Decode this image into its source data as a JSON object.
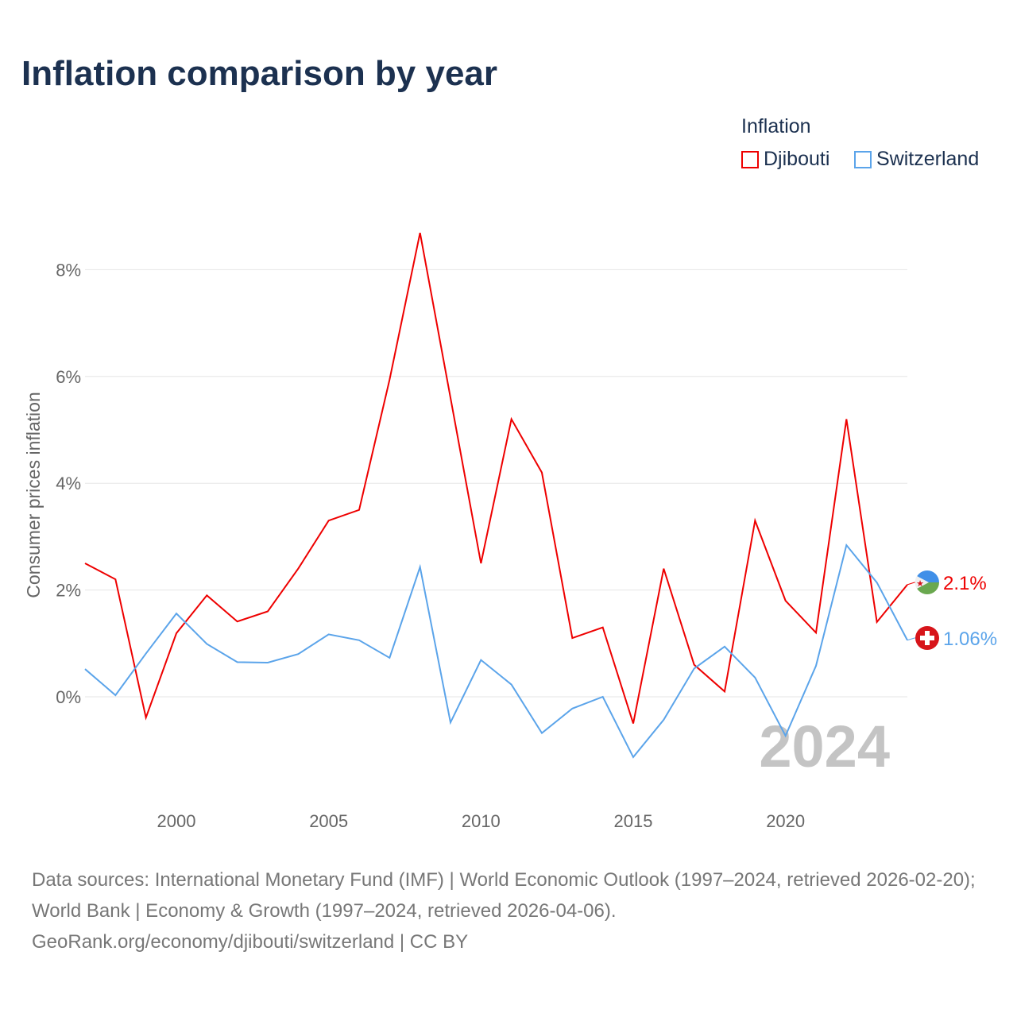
{
  "chart_data": {
    "type": "line",
    "title": "Inflation comparison by year",
    "ylabel": "Consumer prices inflation",
    "xlabel": "",
    "legend_title": "Inflation",
    "legend_position": "top-right",
    "ylim": [
      -1.95,
      9.3
    ],
    "xlim": [
      1997,
      2024
    ],
    "yticks": [
      0,
      2,
      4,
      6,
      8
    ],
    "ytick_labels": [
      "0%",
      "2%",
      "4%",
      "6%",
      "8%"
    ],
    "xticks": [
      2000,
      2005,
      2010,
      2015,
      2020
    ],
    "xtick_labels": [
      "2000",
      "2005",
      "2010",
      "2015",
      "2020"
    ],
    "grid": true,
    "year_watermark": "2024",
    "x": [
      1997,
      1998,
      1999,
      2000,
      2001,
      2002,
      2003,
      2004,
      2005,
      2006,
      2007,
      2008,
      2009,
      2010,
      2011,
      2012,
      2013,
      2014,
      2015,
      2016,
      2017,
      2018,
      2019,
      2020,
      2021,
      2022,
      2023,
      2024
    ],
    "series": [
      {
        "name": "Djibouti",
        "color": "#ee0000",
        "end_label": "2.1%",
        "flag": "djibouti-flag",
        "values": [
          2.5,
          2.2,
          -0.39,
          1.19,
          1.9,
          1.41,
          1.6,
          2.4,
          3.3,
          3.5,
          5.94,
          8.69,
          5.6,
          2.5,
          5.2,
          4.2,
          1.1,
          1.3,
          -0.5,
          2.4,
          0.6,
          0.1,
          3.3,
          1.8,
          1.2,
          5.2,
          1.4,
          2.1
        ]
      },
      {
        "name": "Switzerland",
        "color": "#5ba4ea",
        "end_label": "1.06%",
        "flag": "switzerland-flag",
        "values": [
          0.52,
          0.03,
          0.81,
          1.56,
          0.99,
          0.65,
          0.64,
          0.8,
          1.17,
          1.06,
          0.73,
          2.43,
          -0.48,
          0.69,
          0.23,
          -0.68,
          -0.22,
          0.0,
          -1.13,
          -0.43,
          0.53,
          0.94,
          0.36,
          -0.73,
          0.58,
          2.84,
          2.14,
          1.06
        ]
      }
    ]
  },
  "source_text": "Data sources: International Monetary Fund (IMF) | World Economic Outlook (1997–2024, retrieved 2026-02-20); World Bank | Economy & Growth (1997–2024, retrieved 2026-04-06).",
  "attribution": "GeoRank.org/economy/djibouti/switzerland | CC BY"
}
